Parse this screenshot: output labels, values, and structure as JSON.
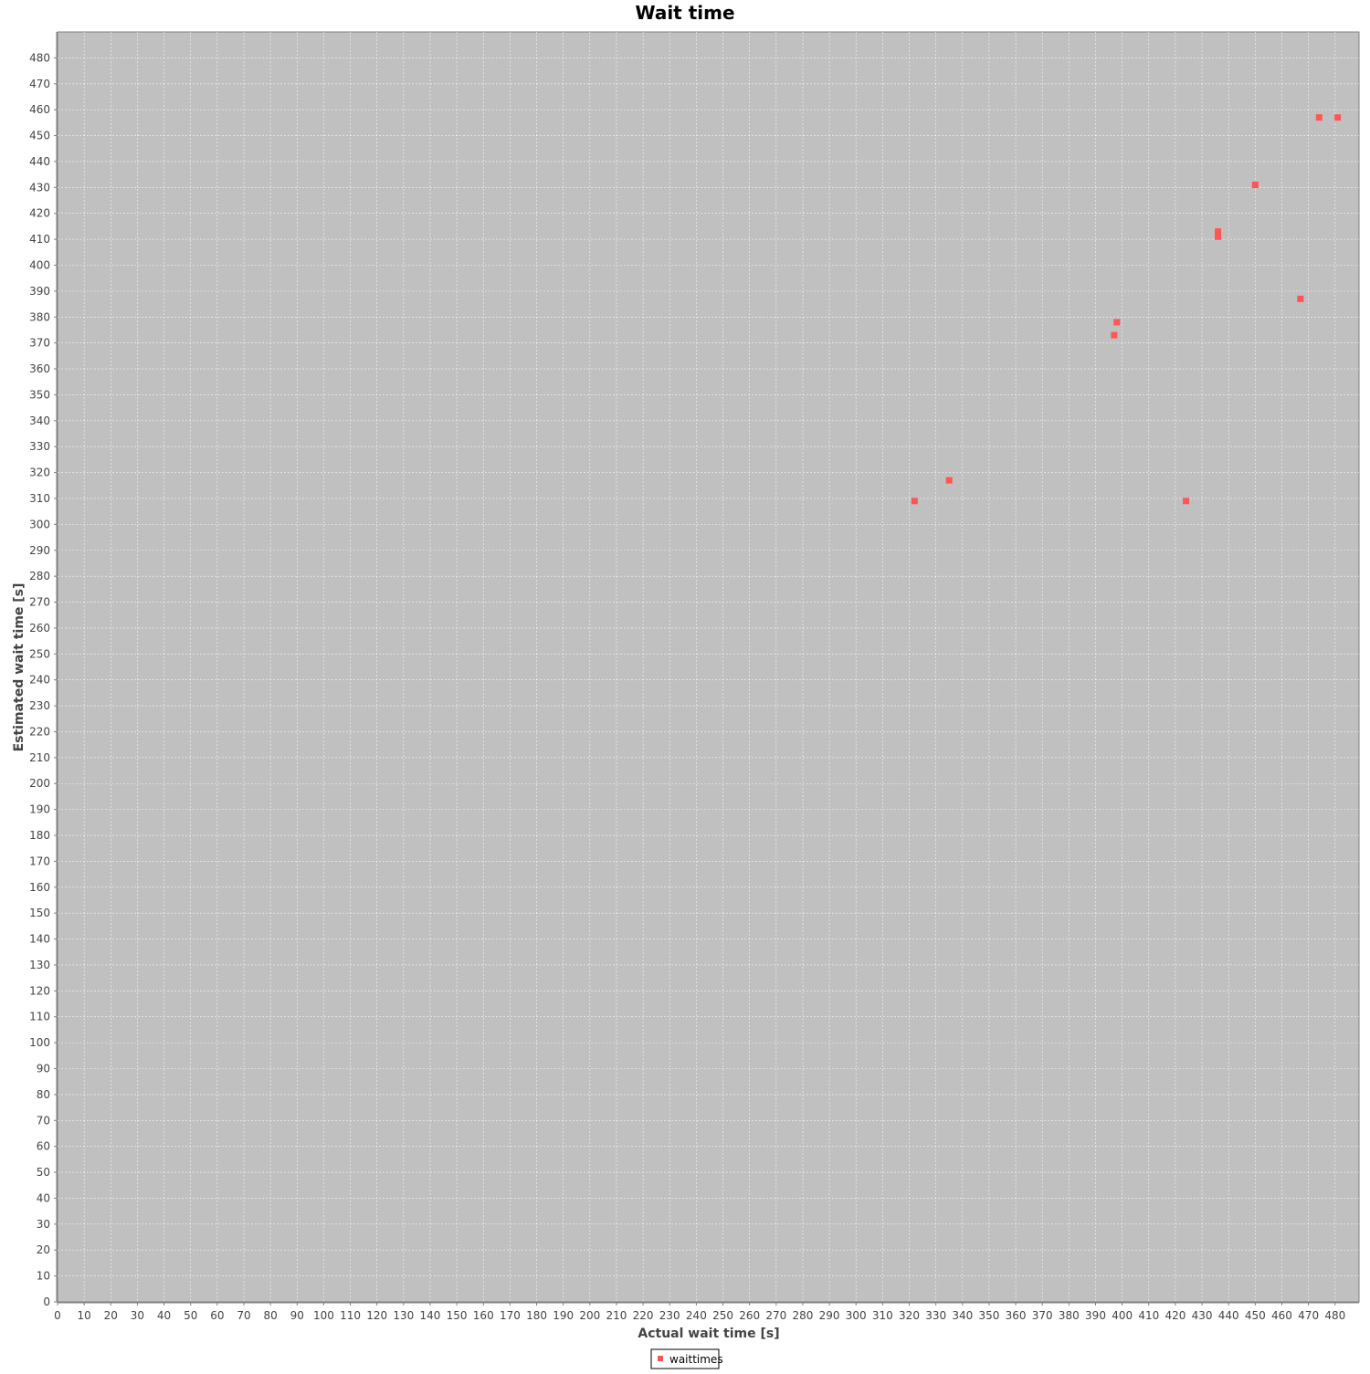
{
  "chart_data": {
    "type": "scatter",
    "title": "Wait time",
    "xlabel": "Actual wait time [s]",
    "ylabel": "Estimated wait time [s]",
    "xlim": [
      0,
      489
    ],
    "ylim": [
      0,
      490
    ],
    "xticks": [
      0,
      10,
      20,
      30,
      40,
      50,
      60,
      70,
      80,
      90,
      100,
      110,
      120,
      130,
      140,
      150,
      160,
      170,
      180,
      190,
      200,
      210,
      220,
      230,
      240,
      250,
      260,
      270,
      280,
      290,
      300,
      310,
      320,
      330,
      340,
      350,
      360,
      370,
      380,
      390,
      400,
      410,
      420,
      430,
      440,
      450,
      460,
      470,
      480
    ],
    "yticks": [
      0,
      10,
      20,
      30,
      40,
      50,
      60,
      70,
      80,
      90,
      100,
      110,
      120,
      130,
      140,
      150,
      160,
      170,
      180,
      190,
      200,
      210,
      220,
      230,
      240,
      250,
      260,
      270,
      280,
      290,
      300,
      310,
      320,
      330,
      340,
      350,
      360,
      370,
      380,
      390,
      400,
      410,
      420,
      430,
      440,
      450,
      460,
      470,
      480
    ],
    "grid": true,
    "legend_position": "bottom",
    "colors": {
      "plot_background": "#c0c0c0",
      "grid": "#ffffff",
      "marker": "#ff5555"
    },
    "series": [
      {
        "name": "waittimes",
        "x": [
          322,
          335,
          397,
          398,
          424,
          436,
          436,
          450,
          467,
          474,
          481
        ],
        "y": [
          309,
          317,
          373,
          378,
          309,
          411,
          413,
          431,
          387,
          457,
          457
        ]
      }
    ]
  }
}
